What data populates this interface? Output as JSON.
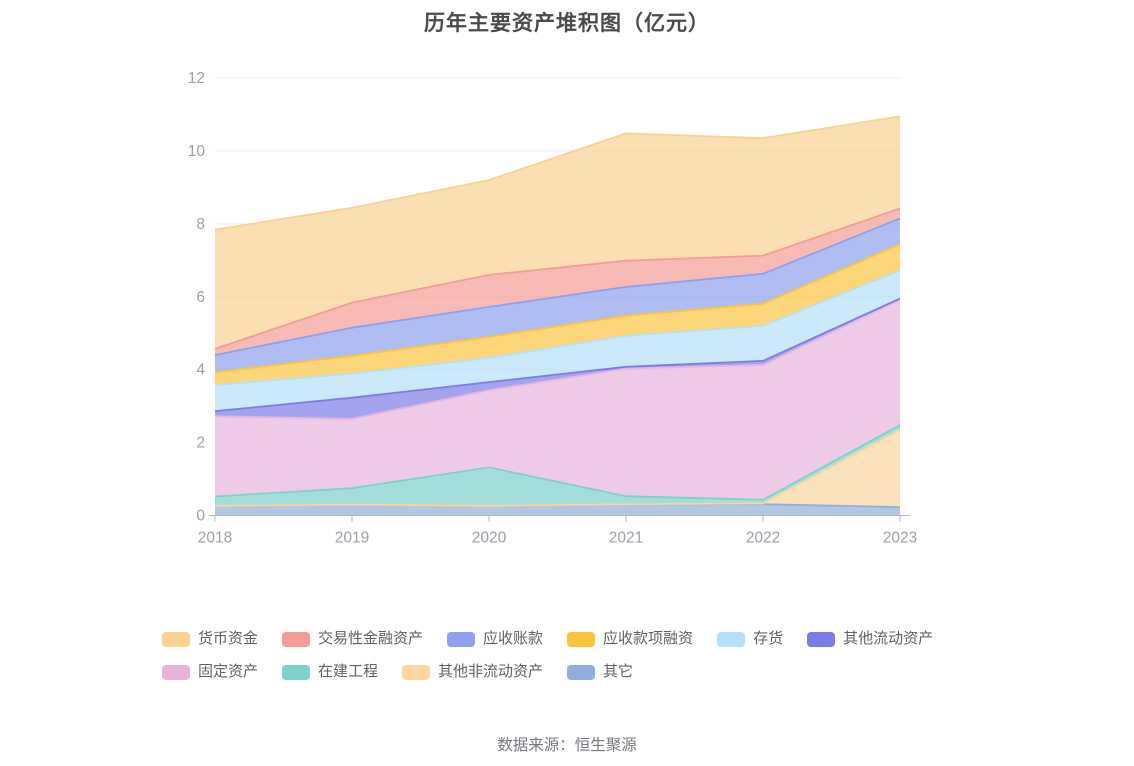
{
  "title": "历年主要资产堆积图（亿元）",
  "source": "数据来源：恒生聚源",
  "chart_data": {
    "type": "area",
    "stacked": true,
    "title": "历年主要资产堆积图（亿元）",
    "unit": "亿元",
    "x": [
      "2018",
      "2019",
      "2020",
      "2021",
      "2022",
      "2023"
    ],
    "y_ticks": [
      0,
      2,
      4,
      6,
      8,
      10,
      12
    ],
    "ylim": [
      0,
      12
    ],
    "grid": true,
    "legend_position": "bottom",
    "area_opacity": 0.7,
    "axis_color": "#b0b4bc",
    "grid_color": "#e9edf6",
    "label_color": "#9ca0a8",
    "series_bottom_to_top": [
      {
        "name": "其它",
        "color": "#92AEDC",
        "values": [
          0.27,
          0.3,
          0.27,
          0.31,
          0.31,
          0.23
        ]
      },
      {
        "name": "其他非流动资产",
        "color": "#FBD69E",
        "values": [
          0.0,
          0.0,
          0.0,
          0.0,
          0.02,
          2.12
        ]
      },
      {
        "name": "在建工程",
        "color": "#7CD1CB",
        "values": [
          0.25,
          0.45,
          1.05,
          0.22,
          0.1,
          0.13
        ]
      },
      {
        "name": "固定资产",
        "color": "#E8B4DB",
        "values": [
          2.2,
          1.9,
          2.12,
          3.5,
          3.7,
          3.44
        ]
      },
      {
        "name": "其他流动资产",
        "color": "#7C7CE8",
        "values": [
          0.14,
          0.58,
          0.22,
          0.05,
          0.11,
          0.03
        ]
      },
      {
        "name": "存货",
        "color": "#B4E0F9",
        "values": [
          0.72,
          0.66,
          0.66,
          0.85,
          0.96,
          0.77
        ]
      },
      {
        "name": "应收款项融资",
        "color": "#FBC43F",
        "values": [
          0.35,
          0.49,
          0.58,
          0.55,
          0.61,
          0.72
        ]
      },
      {
        "name": "应收账款",
        "color": "#8DA1EE",
        "values": [
          0.47,
          0.77,
          0.82,
          0.79,
          0.82,
          0.71
        ]
      },
      {
        "name": "交易性金融资产",
        "color": "#F49D96",
        "values": [
          0.17,
          0.69,
          0.88,
          0.72,
          0.5,
          0.27
        ]
      },
      {
        "name": "货币资金",
        "color": "#FAD191",
        "values": [
          3.27,
          2.6,
          2.6,
          3.49,
          3.22,
          2.53
        ]
      }
    ],
    "legend_order": [
      "货币资金",
      "交易性金融资产",
      "应收账款",
      "应收款项融资",
      "存货",
      "其他流动资产",
      "固定资产",
      "在建工程",
      "其他非流动资产",
      "其它"
    ],
    "totals": [
      7.84,
      8.44,
      9.2,
      10.48,
      10.35,
      10.95
    ]
  }
}
